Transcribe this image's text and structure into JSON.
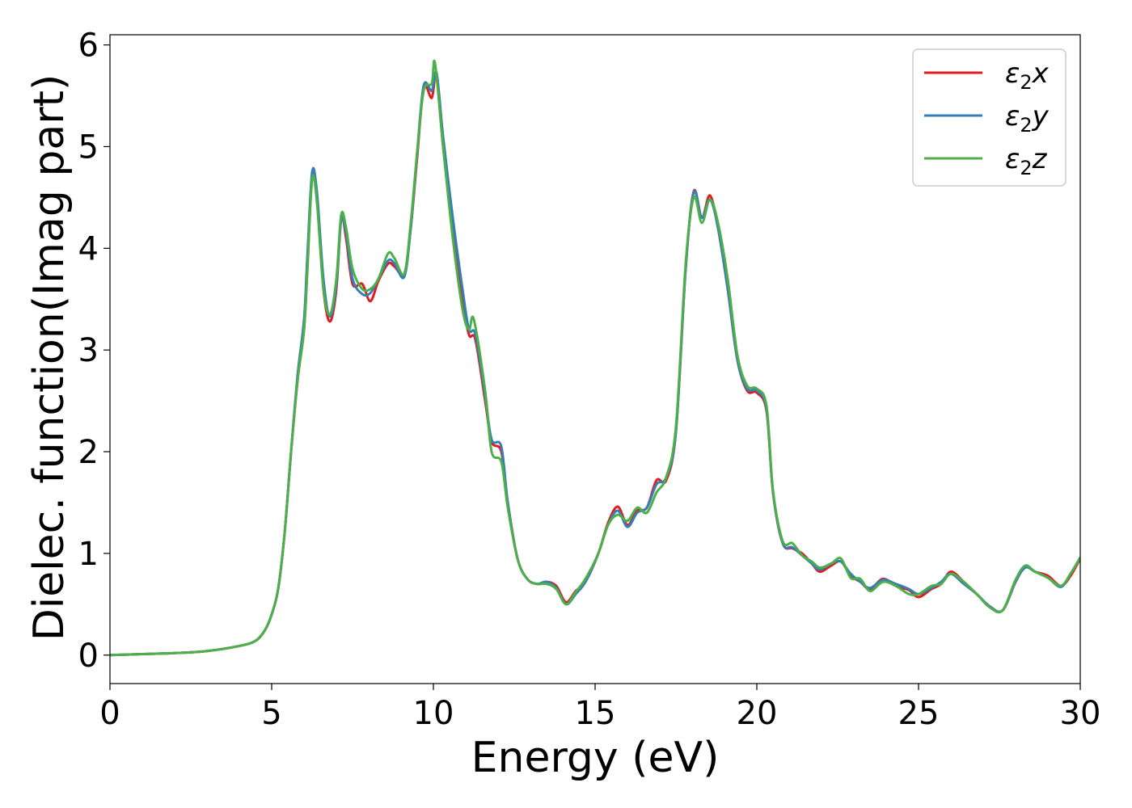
{
  "chart_data": {
    "type": "line",
    "title": "",
    "xlabel": "Energy (eV)",
    "ylabel": "Dielec. function(Imag part)",
    "xlim": [
      0,
      30
    ],
    "ylim": [
      -0.28,
      6.1
    ],
    "xticks": [
      0,
      5,
      10,
      15,
      20,
      25,
      30
    ],
    "yticks": [
      0,
      1,
      2,
      3,
      4,
      5,
      6
    ],
    "xtick_labels": [
      "0",
      "5",
      "10",
      "15",
      "20",
      "25",
      "30"
    ],
    "ytick_labels": [
      "0",
      "1",
      "2",
      "3",
      "4",
      "5",
      "6"
    ],
    "grid": false,
    "legend_position": "top-right",
    "series": [
      {
        "name": "ε₂x",
        "name_base": "ε",
        "name_sub": "2",
        "name_var": "x",
        "color": "#e41a1c",
        "points": [
          [
            0,
            0
          ],
          [
            1,
            0.01
          ],
          [
            2,
            0.02
          ],
          [
            3,
            0.04
          ],
          [
            4,
            0.09
          ],
          [
            4.5,
            0.14
          ],
          [
            4.8,
            0.25
          ],
          [
            5.0,
            0.4
          ],
          [
            5.2,
            0.65
          ],
          [
            5.4,
            1.2
          ],
          [
            5.6,
            2.0
          ],
          [
            5.8,
            2.7
          ],
          [
            6.0,
            3.2
          ],
          [
            6.1,
            3.8
          ],
          [
            6.25,
            4.7
          ],
          [
            6.4,
            4.5
          ],
          [
            6.6,
            3.6
          ],
          [
            6.8,
            3.28
          ],
          [
            7.0,
            3.6
          ],
          [
            7.15,
            4.3
          ],
          [
            7.3,
            4.1
          ],
          [
            7.5,
            3.65
          ],
          [
            7.8,
            3.65
          ],
          [
            8.05,
            3.48
          ],
          [
            8.3,
            3.68
          ],
          [
            8.6,
            3.85
          ],
          [
            8.8,
            3.82
          ],
          [
            9.1,
            3.75
          ],
          [
            9.3,
            4.2
          ],
          [
            9.5,
            4.9
          ],
          [
            9.7,
            5.58
          ],
          [
            9.95,
            5.48
          ],
          [
            10.1,
            5.72
          ],
          [
            10.3,
            5.0
          ],
          [
            10.6,
            4.2
          ],
          [
            10.9,
            3.5
          ],
          [
            11.1,
            3.15
          ],
          [
            11.3,
            3.1
          ],
          [
            11.6,
            2.5
          ],
          [
            11.8,
            2.1
          ],
          [
            12.1,
            2.0
          ],
          [
            12.3,
            1.5
          ],
          [
            12.6,
            0.95
          ],
          [
            12.9,
            0.75
          ],
          [
            13.2,
            0.7
          ],
          [
            13.5,
            0.72
          ],
          [
            13.8,
            0.68
          ],
          [
            14.1,
            0.52
          ],
          [
            14.4,
            0.63
          ],
          [
            14.7,
            0.72
          ],
          [
            15.1,
            1.0
          ],
          [
            15.4,
            1.3
          ],
          [
            15.7,
            1.46
          ],
          [
            16.0,
            1.28
          ],
          [
            16.3,
            1.42
          ],
          [
            16.6,
            1.45
          ],
          [
            16.9,
            1.72
          ],
          [
            17.2,
            1.72
          ],
          [
            17.5,
            2.2
          ],
          [
            17.8,
            3.8
          ],
          [
            18.05,
            4.56
          ],
          [
            18.3,
            4.3
          ],
          [
            18.55,
            4.52
          ],
          [
            18.8,
            4.2
          ],
          [
            19.1,
            3.6
          ],
          [
            19.4,
            2.9
          ],
          [
            19.7,
            2.6
          ],
          [
            20.0,
            2.58
          ],
          [
            20.3,
            2.4
          ],
          [
            20.5,
            1.6
          ],
          [
            20.8,
            1.1
          ],
          [
            21.1,
            1.05
          ],
          [
            21.4,
            1.0
          ],
          [
            21.7,
            0.9
          ],
          [
            21.95,
            0.82
          ],
          [
            22.3,
            0.88
          ],
          [
            22.6,
            0.92
          ],
          [
            22.9,
            0.78
          ],
          [
            23.2,
            0.72
          ],
          [
            23.5,
            0.65
          ],
          [
            23.9,
            0.75
          ],
          [
            24.3,
            0.68
          ],
          [
            24.7,
            0.64
          ],
          [
            25.0,
            0.57
          ],
          [
            25.4,
            0.65
          ],
          [
            25.7,
            0.7
          ],
          [
            26.0,
            0.82
          ],
          [
            26.4,
            0.72
          ],
          [
            26.8,
            0.6
          ],
          [
            27.2,
            0.48
          ],
          [
            27.6,
            0.44
          ],
          [
            28.0,
            0.72
          ],
          [
            28.3,
            0.87
          ],
          [
            28.6,
            0.82
          ],
          [
            29.0,
            0.78
          ],
          [
            29.4,
            0.68
          ],
          [
            29.7,
            0.78
          ],
          [
            30.0,
            0.95
          ]
        ]
      },
      {
        "name": "ε₂y",
        "name_base": "ε",
        "name_sub": "2",
        "name_var": "y",
        "color": "#377eb8",
        "points": [
          [
            0,
            0
          ],
          [
            1,
            0.01
          ],
          [
            2,
            0.02
          ],
          [
            3,
            0.04
          ],
          [
            4,
            0.09
          ],
          [
            4.5,
            0.14
          ],
          [
            4.8,
            0.25
          ],
          [
            5.0,
            0.4
          ],
          [
            5.2,
            0.65
          ],
          [
            5.4,
            1.2
          ],
          [
            5.6,
            2.0
          ],
          [
            5.8,
            2.75
          ],
          [
            6.0,
            3.3
          ],
          [
            6.1,
            3.9
          ],
          [
            6.25,
            4.75
          ],
          [
            6.4,
            4.55
          ],
          [
            6.6,
            3.7
          ],
          [
            6.8,
            3.33
          ],
          [
            7.0,
            3.65
          ],
          [
            7.15,
            4.28
          ],
          [
            7.3,
            4.15
          ],
          [
            7.5,
            3.7
          ],
          [
            7.8,
            3.55
          ],
          [
            8.05,
            3.56
          ],
          [
            8.3,
            3.7
          ],
          [
            8.6,
            3.88
          ],
          [
            8.8,
            3.85
          ],
          [
            9.1,
            3.72
          ],
          [
            9.3,
            4.2
          ],
          [
            9.5,
            4.95
          ],
          [
            9.7,
            5.6
          ],
          [
            9.95,
            5.55
          ],
          [
            10.1,
            5.72
          ],
          [
            10.3,
            5.1
          ],
          [
            10.6,
            4.3
          ],
          [
            10.9,
            3.6
          ],
          [
            11.1,
            3.2
          ],
          [
            11.3,
            3.15
          ],
          [
            11.6,
            2.55
          ],
          [
            11.8,
            2.12
          ],
          [
            12.1,
            2.05
          ],
          [
            12.3,
            1.5
          ],
          [
            12.6,
            0.95
          ],
          [
            12.9,
            0.75
          ],
          [
            13.2,
            0.7
          ],
          [
            13.5,
            0.72
          ],
          [
            13.8,
            0.66
          ],
          [
            14.1,
            0.5
          ],
          [
            14.4,
            0.6
          ],
          [
            14.7,
            0.72
          ],
          [
            15.1,
            1.0
          ],
          [
            15.4,
            1.28
          ],
          [
            15.7,
            1.42
          ],
          [
            16.0,
            1.26
          ],
          [
            16.3,
            1.4
          ],
          [
            16.6,
            1.45
          ],
          [
            16.9,
            1.68
          ],
          [
            17.2,
            1.75
          ],
          [
            17.5,
            2.2
          ],
          [
            17.8,
            3.8
          ],
          [
            18.05,
            4.55
          ],
          [
            18.3,
            4.3
          ],
          [
            18.55,
            4.48
          ],
          [
            18.8,
            4.2
          ],
          [
            19.1,
            3.6
          ],
          [
            19.4,
            2.9
          ],
          [
            19.7,
            2.62
          ],
          [
            20.0,
            2.6
          ],
          [
            20.3,
            2.42
          ],
          [
            20.5,
            1.6
          ],
          [
            20.8,
            1.1
          ],
          [
            21.1,
            1.06
          ],
          [
            21.4,
            0.98
          ],
          [
            21.7,
            0.9
          ],
          [
            21.95,
            0.84
          ],
          [
            22.3,
            0.9
          ],
          [
            22.6,
            0.92
          ],
          [
            22.9,
            0.8
          ],
          [
            23.2,
            0.72
          ],
          [
            23.5,
            0.66
          ],
          [
            23.9,
            0.74
          ],
          [
            24.3,
            0.7
          ],
          [
            24.7,
            0.65
          ],
          [
            25.0,
            0.6
          ],
          [
            25.4,
            0.66
          ],
          [
            25.7,
            0.72
          ],
          [
            26.0,
            0.8
          ],
          [
            26.4,
            0.7
          ],
          [
            26.8,
            0.6
          ],
          [
            27.2,
            0.48
          ],
          [
            27.6,
            0.44
          ],
          [
            28.0,
            0.72
          ],
          [
            28.3,
            0.86
          ],
          [
            28.6,
            0.82
          ],
          [
            29.0,
            0.76
          ],
          [
            29.4,
            0.67
          ],
          [
            29.7,
            0.8
          ],
          [
            30.0,
            0.96
          ]
        ]
      },
      {
        "name": "ε₂z",
        "name_base": "ε",
        "name_sub": "2",
        "name_var": "z",
        "color": "#4daf4a",
        "points": [
          [
            0,
            0
          ],
          [
            1,
            0.01
          ],
          [
            2,
            0.02
          ],
          [
            3,
            0.04
          ],
          [
            4,
            0.09
          ],
          [
            4.5,
            0.14
          ],
          [
            4.8,
            0.25
          ],
          [
            5.0,
            0.4
          ],
          [
            5.2,
            0.65
          ],
          [
            5.4,
            1.2
          ],
          [
            5.6,
            2.0
          ],
          [
            5.8,
            2.7
          ],
          [
            6.0,
            3.2
          ],
          [
            6.1,
            3.75
          ],
          [
            6.25,
            4.68
          ],
          [
            6.4,
            4.45
          ],
          [
            6.6,
            3.6
          ],
          [
            6.8,
            3.35
          ],
          [
            7.0,
            3.7
          ],
          [
            7.15,
            4.33
          ],
          [
            7.3,
            4.2
          ],
          [
            7.5,
            3.8
          ],
          [
            7.8,
            3.6
          ],
          [
            8.05,
            3.6
          ],
          [
            8.3,
            3.7
          ],
          [
            8.6,
            3.95
          ],
          [
            8.8,
            3.9
          ],
          [
            9.1,
            3.75
          ],
          [
            9.3,
            4.25
          ],
          [
            9.5,
            4.95
          ],
          [
            9.7,
            5.55
          ],
          [
            9.95,
            5.62
          ],
          [
            10.05,
            5.82
          ],
          [
            10.3,
            5.0
          ],
          [
            10.6,
            4.1
          ],
          [
            10.9,
            3.4
          ],
          [
            11.1,
            3.2
          ],
          [
            11.25,
            3.3
          ],
          [
            11.6,
            2.6
          ],
          [
            11.8,
            2.0
          ],
          [
            12.1,
            1.9
          ],
          [
            12.3,
            1.45
          ],
          [
            12.6,
            0.95
          ],
          [
            12.9,
            0.75
          ],
          [
            13.2,
            0.7
          ],
          [
            13.5,
            0.7
          ],
          [
            13.8,
            0.65
          ],
          [
            14.1,
            0.5
          ],
          [
            14.4,
            0.62
          ],
          [
            14.7,
            0.75
          ],
          [
            15.1,
            1.0
          ],
          [
            15.4,
            1.28
          ],
          [
            15.7,
            1.38
          ],
          [
            16.0,
            1.32
          ],
          [
            16.3,
            1.45
          ],
          [
            16.6,
            1.4
          ],
          [
            16.9,
            1.6
          ],
          [
            17.2,
            1.75
          ],
          [
            17.5,
            2.25
          ],
          [
            17.8,
            3.85
          ],
          [
            18.05,
            4.5
          ],
          [
            18.3,
            4.25
          ],
          [
            18.55,
            4.48
          ],
          [
            18.8,
            4.25
          ],
          [
            19.1,
            3.7
          ],
          [
            19.4,
            2.95
          ],
          [
            19.7,
            2.65
          ],
          [
            20.0,
            2.62
          ],
          [
            20.3,
            2.45
          ],
          [
            20.5,
            1.62
          ],
          [
            20.8,
            1.12
          ],
          [
            21.1,
            1.1
          ],
          [
            21.4,
            0.98
          ],
          [
            21.7,
            0.92
          ],
          [
            21.95,
            0.86
          ],
          [
            22.3,
            0.9
          ],
          [
            22.6,
            0.95
          ],
          [
            22.9,
            0.76
          ],
          [
            23.2,
            0.75
          ],
          [
            23.5,
            0.63
          ],
          [
            23.9,
            0.72
          ],
          [
            24.3,
            0.68
          ],
          [
            24.7,
            0.6
          ],
          [
            25.0,
            0.6
          ],
          [
            25.4,
            0.68
          ],
          [
            25.7,
            0.7
          ],
          [
            26.0,
            0.8
          ],
          [
            26.4,
            0.72
          ],
          [
            26.8,
            0.6
          ],
          [
            27.2,
            0.47
          ],
          [
            27.6,
            0.44
          ],
          [
            28.0,
            0.74
          ],
          [
            28.3,
            0.88
          ],
          [
            28.6,
            0.82
          ],
          [
            29.0,
            0.76
          ],
          [
            29.4,
            0.68
          ],
          [
            29.7,
            0.8
          ],
          [
            30.0,
            0.96
          ]
        ]
      }
    ]
  }
}
